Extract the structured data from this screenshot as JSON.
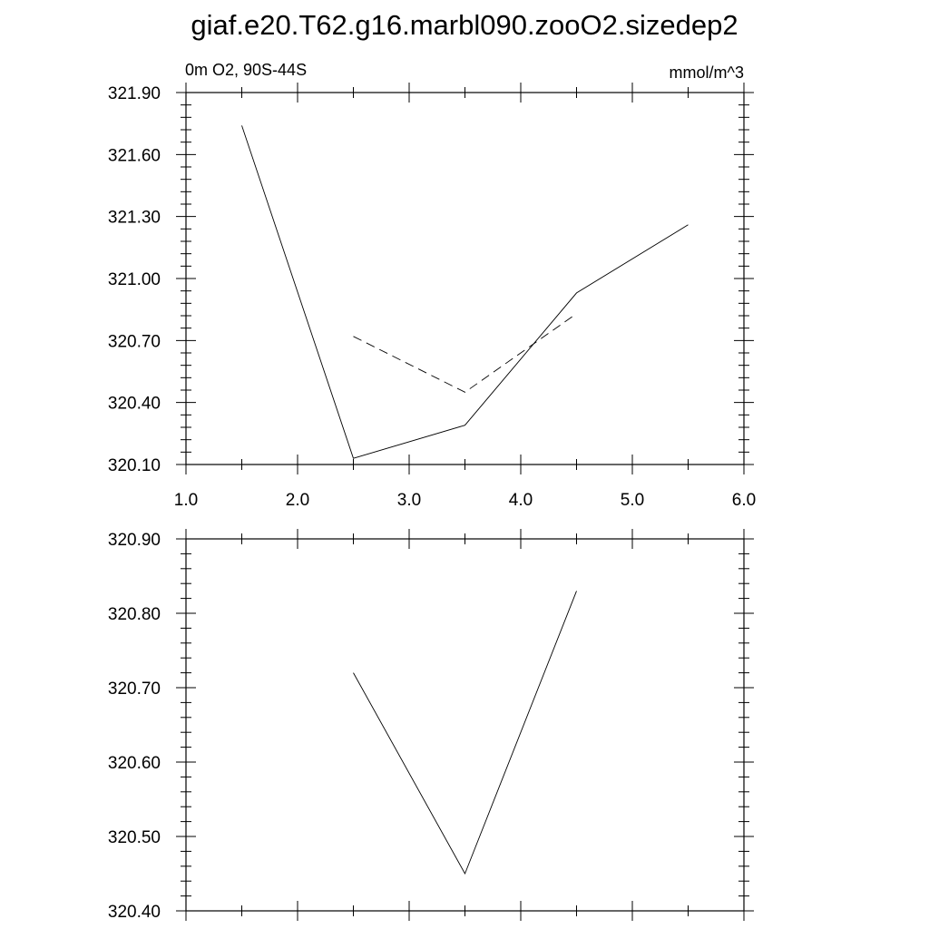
{
  "title": "giaf.e20.T62.g16.marbl090.zooO2.sizedep2",
  "chart_data": [
    {
      "type": "line",
      "subtitle_left": "0m O2, 90S-44S",
      "subtitle_right": "mmol/m^3",
      "xlim": [
        1.0,
        6.0
      ],
      "ylim": [
        320.1,
        321.9
      ],
      "x_ticks": [
        "1.0",
        "2.0",
        "3.0",
        "4.0",
        "5.0",
        "6.0"
      ],
      "y_ticks": [
        "320.10",
        "320.40",
        "320.70",
        "321.00",
        "321.30",
        "321.60",
        "321.90"
      ],
      "grid": false,
      "series": [
        {
          "style": "solid",
          "x": [
            1.5,
            2.5,
            3.5,
            4.5,
            5.5
          ],
          "y": [
            321.74,
            320.13,
            320.29,
            320.93,
            321.26
          ]
        },
        {
          "style": "dashed",
          "x": [
            2.5,
            3.5,
            4.5
          ],
          "y": [
            320.72,
            320.45,
            320.83
          ]
        }
      ]
    },
    {
      "type": "line",
      "xlim": [
        1.0,
        6.0
      ],
      "ylim": [
        320.4,
        320.9
      ],
      "x_ticks": [],
      "y_ticks": [
        "320.40",
        "320.50",
        "320.60",
        "320.70",
        "320.80",
        "320.90"
      ],
      "grid": false,
      "series": [
        {
          "style": "solid",
          "x": [
            2.5,
            3.5,
            4.5
          ],
          "y": [
            320.72,
            320.45,
            320.83
          ]
        }
      ]
    }
  ]
}
